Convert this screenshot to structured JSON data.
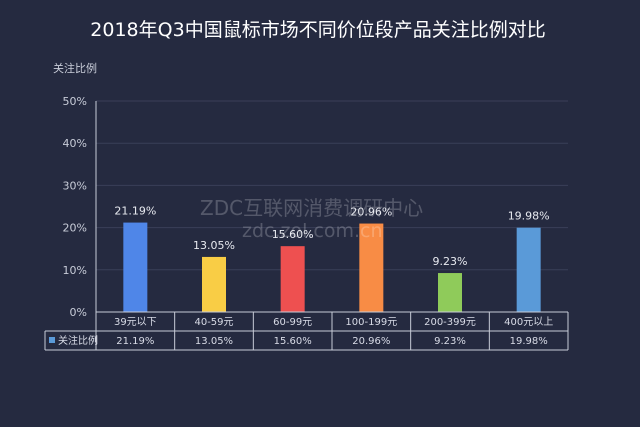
{
  "chart_data": {
    "type": "bar",
    "title": "2018年Q3中国鼠标市场不同价位段产品关注比例对比",
    "ylabel": "关注比例",
    "xlabel": "",
    "categories": [
      "39元以下",
      "40-59元",
      "60-99元",
      "100-199元",
      "200-399元",
      "400元以上"
    ],
    "values": [
      21.19,
      13.05,
      15.6,
      20.96,
      9.23,
      19.98
    ],
    "value_labels": [
      "21.19%",
      "13.05%",
      "15.60%",
      "20.96%",
      "9.23%",
      "19.98%"
    ],
    "series": [
      {
        "name": "关注比例",
        "values": [
          21.19,
          13.05,
          15.6,
          20.96,
          9.23,
          19.98
        ]
      }
    ],
    "ylim": [
      0,
      50
    ],
    "yticks": [
      0,
      10,
      20,
      30,
      40,
      50
    ],
    "ytick_labels": [
      "0%",
      "10%",
      "20%",
      "30%",
      "40%",
      "50%"
    ],
    "grid": true,
    "legend": "data-table-row",
    "data_table": {
      "row_label": "关注比例",
      "cells": [
        "21.19%",
        "13.05%",
        "15.60%",
        "20.96%",
        "9.23%",
        "19.98%"
      ]
    }
  },
  "colors": {
    "background": "#252a40",
    "bars": [
      "#4f86e8",
      "#f9cd45",
      "#ee5050",
      "#f88c45",
      "#8fcb5a",
      "#5a9ad8"
    ],
    "legend_marker": "#5a9ad8"
  },
  "watermark": {
    "line1": "ZDC互联网消费调研中心",
    "line2": "zdc.zol.com.cn"
  }
}
